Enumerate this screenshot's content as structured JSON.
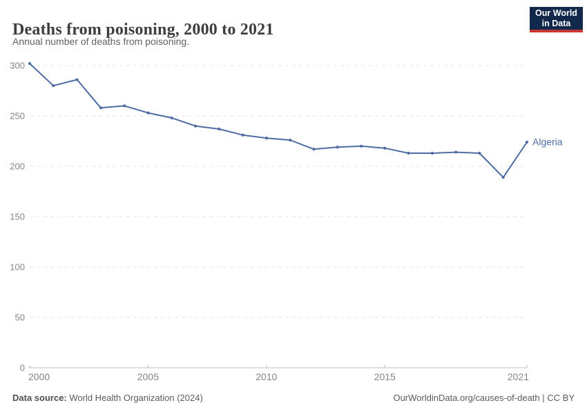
{
  "header": {
    "title": "Deaths from poisoning, 2000 to 2021",
    "subtitle": "Annual number of deaths from poisoning.",
    "logo_line1": "Our World",
    "logo_line2": "in Data"
  },
  "chart_data": {
    "type": "line",
    "title": "Deaths from poisoning, 2000 to 2021",
    "subtitle": "Annual number of deaths from poisoning.",
    "xlabel": "",
    "ylabel": "",
    "x": [
      2000,
      2001,
      2002,
      2003,
      2004,
      2005,
      2006,
      2007,
      2008,
      2009,
      2010,
      2011,
      2012,
      2013,
      2014,
      2015,
      2016,
      2017,
      2018,
      2019,
      2020,
      2021
    ],
    "series": [
      {
        "name": "Algeria",
        "color": "#4e6ba3",
        "values": [
          302,
          280,
          286,
          258,
          260,
          253,
          248,
          240,
          237,
          231,
          228,
          226,
          217,
          219,
          220,
          218,
          213,
          213,
          214,
          213,
          189,
          224
        ]
      }
    ],
    "xlim": [
      2000,
      2021
    ],
    "ylim": [
      0,
      300
    ],
    "xticks": [
      2000,
      2005,
      2010,
      2015,
      2021
    ],
    "yticks": [
      0,
      50,
      100,
      150,
      200,
      250,
      300
    ],
    "grid": "horizontal-dashed",
    "legend": "line-end-label"
  },
  "colors": {
    "line": "#4e6ba3",
    "grid": "#e3e3e3",
    "axis": "#bcbcbc",
    "tick_text": "#858585",
    "logo_bg": "#12294b",
    "logo_red": "#c73931"
  },
  "footer": {
    "source_label": "Data source:",
    "source_value": " World Health Organization (2024)",
    "right_link": "OurWorldinData.org/causes-of-death",
    "right_suffix": " | CC BY"
  }
}
